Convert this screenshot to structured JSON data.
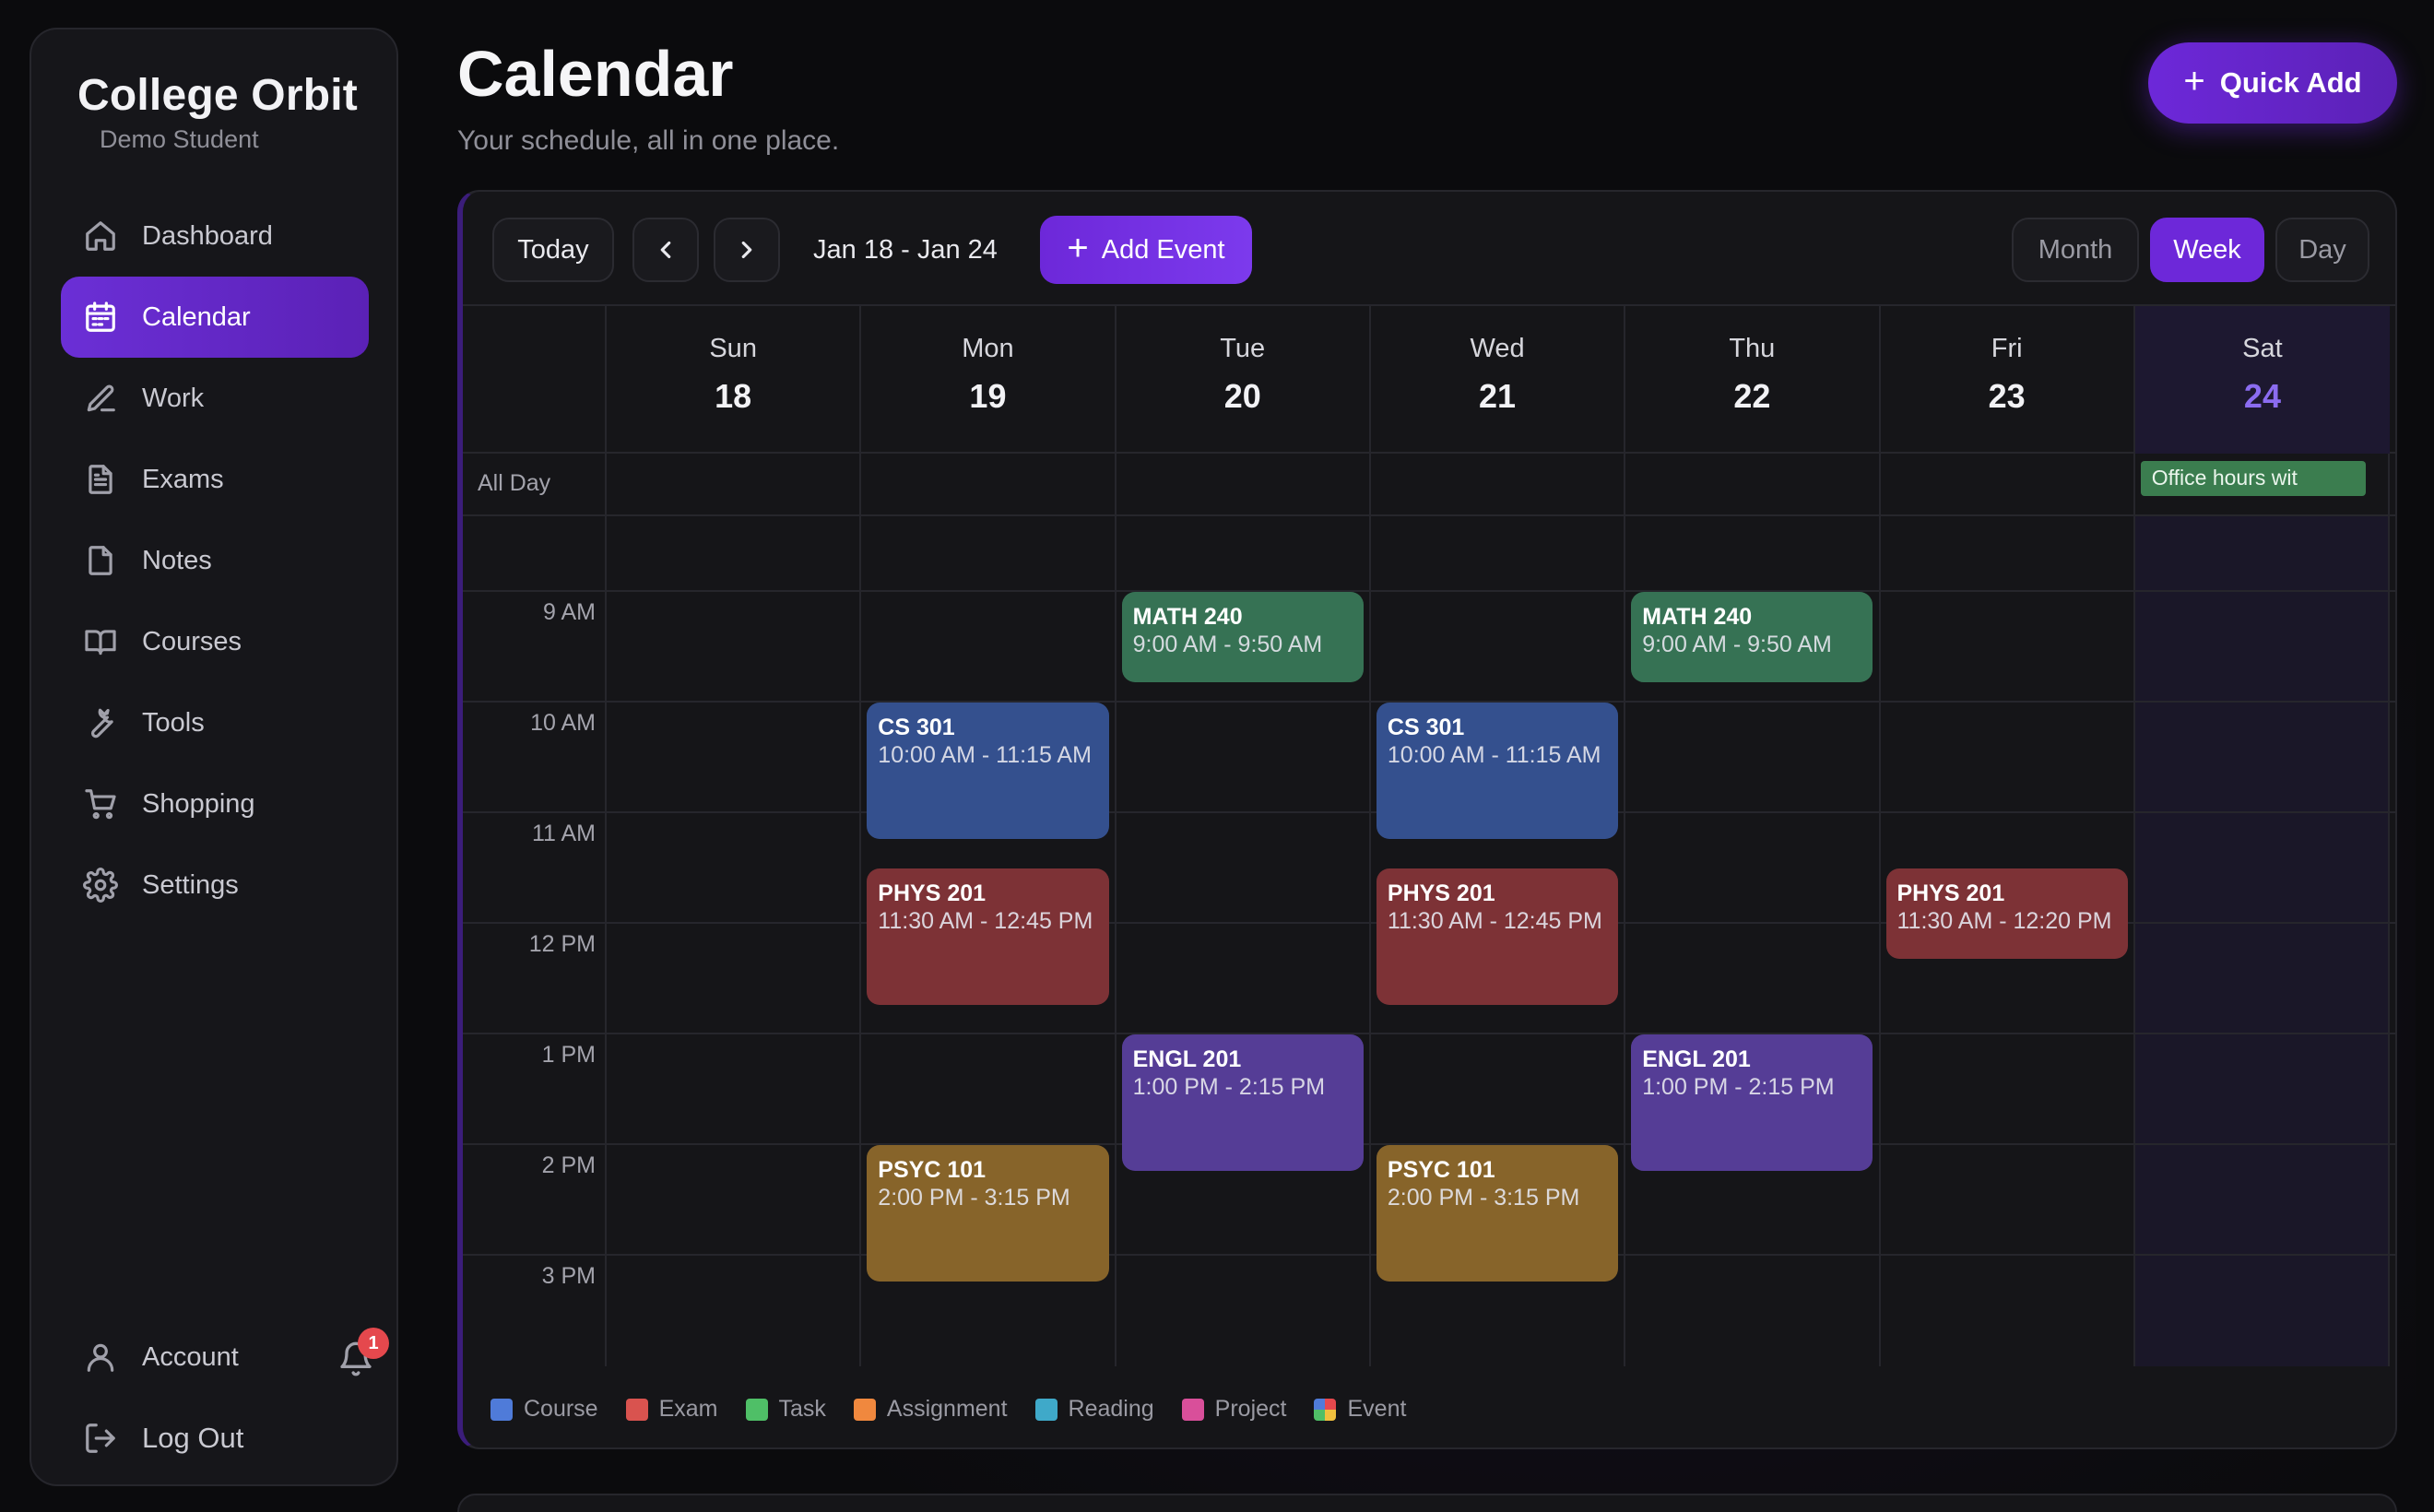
{
  "app": {
    "name": "College Orbit",
    "user": "Demo Student"
  },
  "sidebar": {
    "items": [
      {
        "label": "Dashboard",
        "icon": "home-icon",
        "active": false
      },
      {
        "label": "Calendar",
        "icon": "calendar-icon",
        "active": true
      },
      {
        "label": "Work",
        "icon": "pencil-icon",
        "active": false
      },
      {
        "label": "Exams",
        "icon": "document-icon",
        "active": false
      },
      {
        "label": "Notes",
        "icon": "note-icon",
        "active": false
      },
      {
        "label": "Courses",
        "icon": "book-icon",
        "active": false
      },
      {
        "label": "Tools",
        "icon": "wrench-icon",
        "active": false
      },
      {
        "label": "Shopping",
        "icon": "cart-icon",
        "active": false
      },
      {
        "label": "Settings",
        "icon": "gear-icon",
        "active": false
      }
    ],
    "account_label": "Account",
    "notification_count": "1",
    "logout_label": "Log Out"
  },
  "header": {
    "title": "Calendar",
    "subtitle": "Your schedule, all in one place.",
    "quick_add_label": "Quick Add"
  },
  "toolbar": {
    "today_label": "Today",
    "range": "Jan 18 - Jan 24",
    "add_event_label": "Add Event",
    "views": [
      "Month",
      "Week",
      "Day"
    ],
    "active_view": "Week"
  },
  "days": [
    {
      "name": "Sun",
      "num": "18"
    },
    {
      "name": "Mon",
      "num": "19"
    },
    {
      "name": "Tue",
      "num": "20"
    },
    {
      "name": "Wed",
      "num": "21"
    },
    {
      "name": "Thu",
      "num": "22"
    },
    {
      "name": "Fri",
      "num": "23"
    },
    {
      "name": "Sat",
      "num": "24",
      "today": true
    }
  ],
  "all_day_label": "All Day",
  "all_day_events": [
    {
      "day": 6,
      "title": "Office hours wit"
    }
  ],
  "time_labels": [
    "9 AM",
    "10 AM",
    "11 AM",
    "12 PM",
    "1 PM",
    "2 PM",
    "3 PM"
  ],
  "events": [
    {
      "day": 2,
      "title": "MATH 240",
      "time": "9:00 AM - 9:50 AM",
      "start": 9.0,
      "end": 9.83,
      "color": "#367254"
    },
    {
      "day": 4,
      "title": "MATH 240",
      "time": "9:00 AM - 9:50 AM",
      "start": 9.0,
      "end": 9.83,
      "color": "#367254"
    },
    {
      "day": 1,
      "title": "CS 301",
      "time": "10:00 AM - 11:15 AM",
      "start": 10.0,
      "end": 11.25,
      "color": "#34508e"
    },
    {
      "day": 3,
      "title": "CS 301",
      "time": "10:00 AM - 11:15 AM",
      "start": 10.0,
      "end": 11.25,
      "color": "#34508e"
    },
    {
      "day": 1,
      "title": "PHYS 201",
      "time": "11:30 AM - 12:45 PM",
      "start": 11.5,
      "end": 12.75,
      "color": "#7d3236"
    },
    {
      "day": 3,
      "title": "PHYS 201",
      "time": "11:30 AM - 12:45 PM",
      "start": 11.5,
      "end": 12.75,
      "color": "#7d3236"
    },
    {
      "day": 5,
      "title": "PHYS 201",
      "time": "11:30 AM - 12:20 PM",
      "start": 11.5,
      "end": 12.33,
      "color": "#7d3236"
    },
    {
      "day": 2,
      "title": "ENGL 201",
      "time": "1:00 PM - 2:15 PM",
      "start": 13.0,
      "end": 14.25,
      "color": "#553d96"
    },
    {
      "day": 4,
      "title": "ENGL 201",
      "time": "1:00 PM - 2:15 PM",
      "start": 13.0,
      "end": 14.25,
      "color": "#553d96"
    },
    {
      "day": 1,
      "title": "PSYC 101",
      "time": "2:00 PM - 3:15 PM",
      "start": 14.0,
      "end": 15.25,
      "color": "#87642a"
    },
    {
      "day": 3,
      "title": "PSYC 101",
      "time": "2:00 PM - 3:15 PM",
      "start": 14.0,
      "end": 15.25,
      "color": "#87642a"
    }
  ],
  "legend": [
    {
      "label": "Course",
      "color": "#4f7bd9"
    },
    {
      "label": "Exam",
      "color": "#d9534f"
    },
    {
      "label": "Task",
      "color": "#4fbf67"
    },
    {
      "label": "Assignment",
      "color": "#f0883e"
    },
    {
      "label": "Reading",
      "color": "#3fa9c9"
    },
    {
      "label": "Project",
      "color": "#d94f9a"
    },
    {
      "label": "Event",
      "color": "multicolor"
    }
  ]
}
